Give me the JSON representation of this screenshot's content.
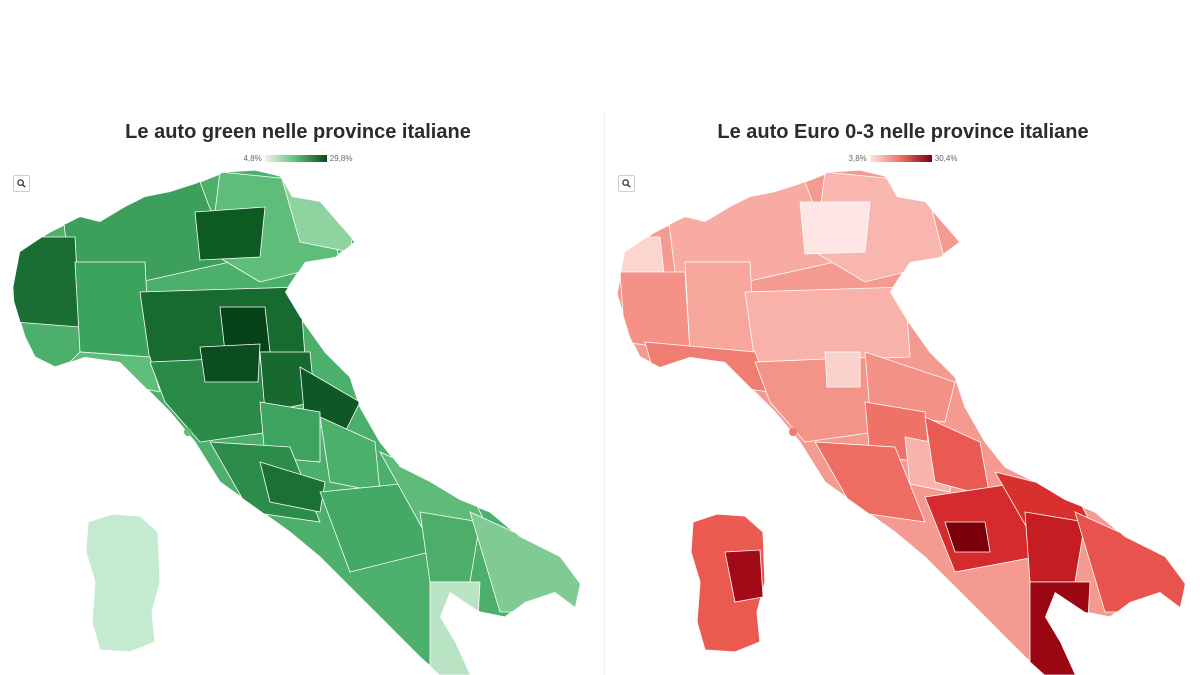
{
  "maps": [
    {
      "title": "Le auto green nelle province italiane",
      "legend_min": "4,8%",
      "legend_max": "29,8%",
      "color_low": "#eaf7ec",
      "color_high": "#0a4a1c",
      "zoom_icon": "magnifier-icon"
    },
    {
      "title": "Le auto Euro 0-3 nelle province italiane",
      "legend_min": "3,8%",
      "legend_max": "30,4%",
      "color_low": "#fde6e3",
      "color_high": "#7b000b",
      "zoom_icon": "magnifier-icon"
    }
  ]
}
